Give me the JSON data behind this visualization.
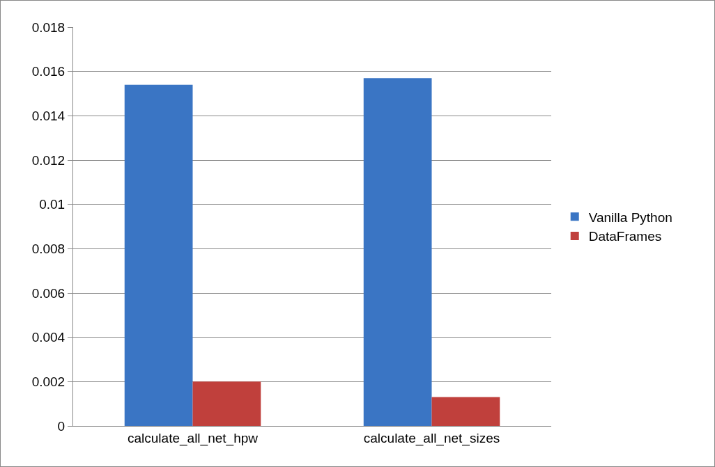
{
  "chart_data": {
    "type": "bar",
    "categories": [
      "calculate_all_net_hpw",
      "calculate_all_net_sizes"
    ],
    "series": [
      {
        "name": "Vanilla Python",
        "color": "#3a75c4",
        "values": [
          0.0154,
          0.0157
        ]
      },
      {
        "name": "DataFrames",
        "color": "#c0403c",
        "values": [
          0.002,
          0.0013
        ]
      }
    ],
    "ylim": [
      0,
      0.018
    ],
    "yticks": [
      0,
      0.002,
      0.004,
      0.006,
      0.008,
      0.01,
      0.012,
      0.014,
      0.016,
      0.018
    ],
    "grid": "y",
    "legend": "right"
  }
}
